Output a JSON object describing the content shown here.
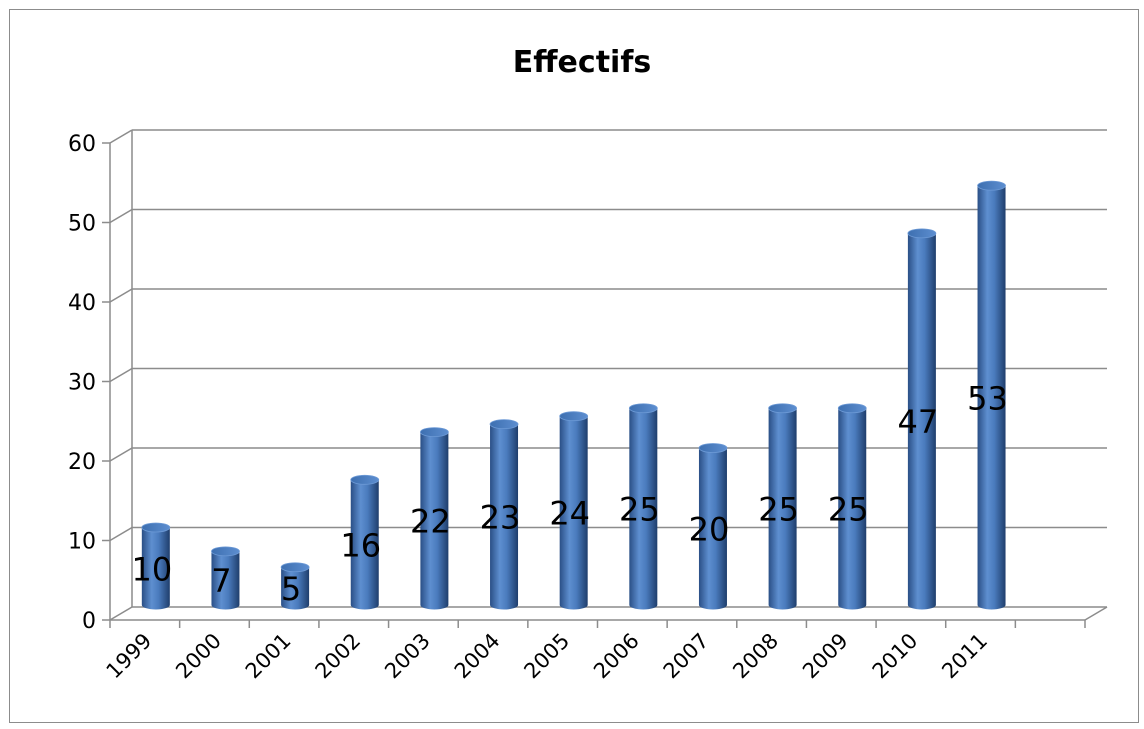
{
  "chart_data": {
    "type": "bar",
    "title": "Effectifs",
    "categories": [
      "1999",
      "2000",
      "2001",
      "2002",
      "2003",
      "2004",
      "2005",
      "2006",
      "2007",
      "2008",
      "2009",
      "2010",
      "2011"
    ],
    "values": [
      10,
      7,
      5,
      16,
      22,
      23,
      24,
      25,
      20,
      25,
      25,
      47,
      53
    ],
    "data_labels": [
      "10",
      "7",
      "5",
      "16",
      "22",
      "23",
      "24",
      "25",
      "20",
      "25",
      "25",
      "47",
      "53"
    ],
    "ylim": [
      0,
      60
    ],
    "yticks": [
      "0",
      "10",
      "20",
      "30",
      "40",
      "50",
      "60"
    ],
    "grid": true,
    "legend": "none",
    "bar_color": "#4f81bd",
    "style": "3d-cylinder"
  }
}
